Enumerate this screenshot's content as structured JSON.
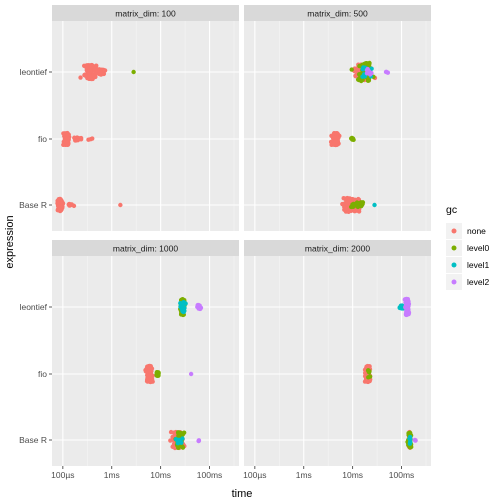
{
  "chart_data": {
    "type": "scatter",
    "title": "",
    "xlabel": "time",
    "ylabel": "expression",
    "x_scale": "log10",
    "xlim": [
      "60µs",
      "400ms"
    ],
    "x_ticks": [
      {
        "label": "100µs",
        "value_ms": 0.1
      },
      {
        "label": "1ms",
        "value_ms": 1
      },
      {
        "label": "10ms",
        "value_ms": 10
      },
      {
        "label": "100ms",
        "value_ms": 100
      }
    ],
    "categories": [
      "Base R",
      "fio",
      "leontief"
    ],
    "grid": true,
    "legend": {
      "title": "gc",
      "position": "right",
      "entries": [
        {
          "name": "none",
          "color": "#F8766D"
        },
        {
          "name": "level0",
          "color": "#7CAE00"
        },
        {
          "name": "level1",
          "color": "#00BFC4"
        },
        {
          "name": "level2",
          "color": "#C77CFF"
        }
      ]
    },
    "facets": [
      {
        "label": "matrix_dim: 100",
        "groups": [
          {
            "expression": "leontief",
            "gc": "none",
            "center_ms": 0.35,
            "spread": 0.12,
            "n": 110,
            "width": 7
          },
          {
            "expression": "leontief",
            "gc": "none",
            "center_ms": 0.62,
            "spread": 0.1,
            "n": 25,
            "width": 3
          },
          {
            "expression": "leontief",
            "gc": "level0",
            "center_ms": 2.8,
            "spread": 0,
            "n": 1,
            "width": 0
          },
          {
            "expression": "fio",
            "gc": "none",
            "center_ms": 0.12,
            "spread": 0.05,
            "n": 120,
            "width": 6
          },
          {
            "expression": "fio",
            "gc": "none",
            "center_ms": 0.2,
            "spread": 0.12,
            "n": 20,
            "width": 1.5
          },
          {
            "expression": "fio",
            "gc": "none",
            "center_ms": 0.38,
            "spread": 0.04,
            "n": 3,
            "width": 1
          },
          {
            "expression": "Base R",
            "gc": "none",
            "center_ms": 0.088,
            "spread": 0.05,
            "n": 120,
            "width": 6
          },
          {
            "expression": "Base R",
            "gc": "none",
            "center_ms": 0.14,
            "spread": 0.08,
            "n": 10,
            "width": 1
          },
          {
            "expression": "Base R",
            "gc": "none",
            "center_ms": 1.5,
            "spread": 0,
            "n": 1,
            "width": 0
          }
        ]
      },
      {
        "label": "matrix_dim: 500",
        "groups": [
          {
            "expression": "leontief",
            "gc": "none",
            "center_ms": 16,
            "spread": 0.18,
            "n": 70,
            "width": 8
          },
          {
            "expression": "leontief",
            "gc": "level0",
            "center_ms": 18,
            "spread": 0.18,
            "n": 60,
            "width": 9
          },
          {
            "expression": "leontief",
            "gc": "level1",
            "center_ms": 18,
            "spread": 0.12,
            "n": 15,
            "width": 5
          },
          {
            "expression": "leontief",
            "gc": "level2",
            "center_ms": 22,
            "spread": 0.08,
            "n": 8,
            "width": 3
          },
          {
            "expression": "leontief",
            "gc": "level2",
            "center_ms": 50,
            "spread": 0.04,
            "n": 3,
            "width": 1
          },
          {
            "expression": "fio",
            "gc": "none",
            "center_ms": 4.5,
            "spread": 0.06,
            "n": 130,
            "width": 6
          },
          {
            "expression": "fio",
            "gc": "level0",
            "center_ms": 10,
            "spread": 0.03,
            "n": 8,
            "width": 1.5
          },
          {
            "expression": "Base R",
            "gc": "none",
            "center_ms": 9.2,
            "spread": 0.18,
            "n": 110,
            "width": 7
          },
          {
            "expression": "Base R",
            "gc": "level0",
            "center_ms": 13,
            "spread": 0.15,
            "n": 20,
            "width": 3
          },
          {
            "expression": "Base R",
            "gc": "level1",
            "center_ms": 28,
            "spread": 0,
            "n": 1,
            "width": 0
          }
        ]
      },
      {
        "label": "matrix_dim: 1000",
        "groups": [
          {
            "expression": "leontief",
            "gc": "level0",
            "center_ms": 28,
            "spread": 0.05,
            "n": 60,
            "width": 8
          },
          {
            "expression": "leontief",
            "gc": "level1",
            "center_ms": 29,
            "spread": 0.06,
            "n": 25,
            "width": 5
          },
          {
            "expression": "leontief",
            "gc": "level2",
            "center_ms": 62,
            "spread": 0.05,
            "n": 12,
            "width": 2
          },
          {
            "expression": "fio",
            "gc": "none",
            "center_ms": 5.8,
            "spread": 0.07,
            "n": 120,
            "width": 8
          },
          {
            "expression": "fio",
            "gc": "level0",
            "center_ms": 8.5,
            "spread": 0.05,
            "n": 15,
            "width": 2
          },
          {
            "expression": "fio",
            "gc": "level2",
            "center_ms": 42,
            "spread": 0,
            "n": 1,
            "width": 0
          },
          {
            "expression": "Base R",
            "gc": "none",
            "center_ms": 22,
            "spread": 0.12,
            "n": 90,
            "width": 8
          },
          {
            "expression": "Base R",
            "gc": "level0",
            "center_ms": 24,
            "spread": 0.12,
            "n": 40,
            "width": 8
          },
          {
            "expression": "Base R",
            "gc": "level1",
            "center_ms": 24,
            "spread": 0.1,
            "n": 6,
            "width": 5
          },
          {
            "expression": "Base R",
            "gc": "level2",
            "center_ms": 62,
            "spread": 0.03,
            "n": 3,
            "width": 1
          }
        ]
      },
      {
        "label": "matrix_dim: 2000",
        "groups": [
          {
            "expression": "leontief",
            "gc": "level1",
            "center_ms": 100,
            "spread": 0.05,
            "n": 18,
            "width": 1.5
          },
          {
            "expression": "leontief",
            "gc": "level2",
            "center_ms": 130,
            "spread": 0.04,
            "n": 70,
            "width": 8
          },
          {
            "expression": "fio",
            "gc": "none",
            "center_ms": 20,
            "spread": 0.06,
            "n": 110,
            "width": 8
          },
          {
            "expression": "fio",
            "gc": "level0",
            "center_ms": 21,
            "spread": 0.06,
            "n": 8,
            "width": 4
          },
          {
            "expression": "Base R",
            "gc": "none",
            "center_ms": 145,
            "spread": 0.03,
            "n": 30,
            "width": 8
          },
          {
            "expression": "Base R",
            "gc": "level0",
            "center_ms": 145,
            "spread": 0.04,
            "n": 30,
            "width": 8
          },
          {
            "expression": "Base R",
            "gc": "level1",
            "center_ms": 150,
            "spread": 0.03,
            "n": 6,
            "width": 4
          },
          {
            "expression": "Base R",
            "gc": "level2",
            "center_ms": 190,
            "spread": 0.02,
            "n": 4,
            "width": 1
          }
        ]
      }
    ]
  }
}
